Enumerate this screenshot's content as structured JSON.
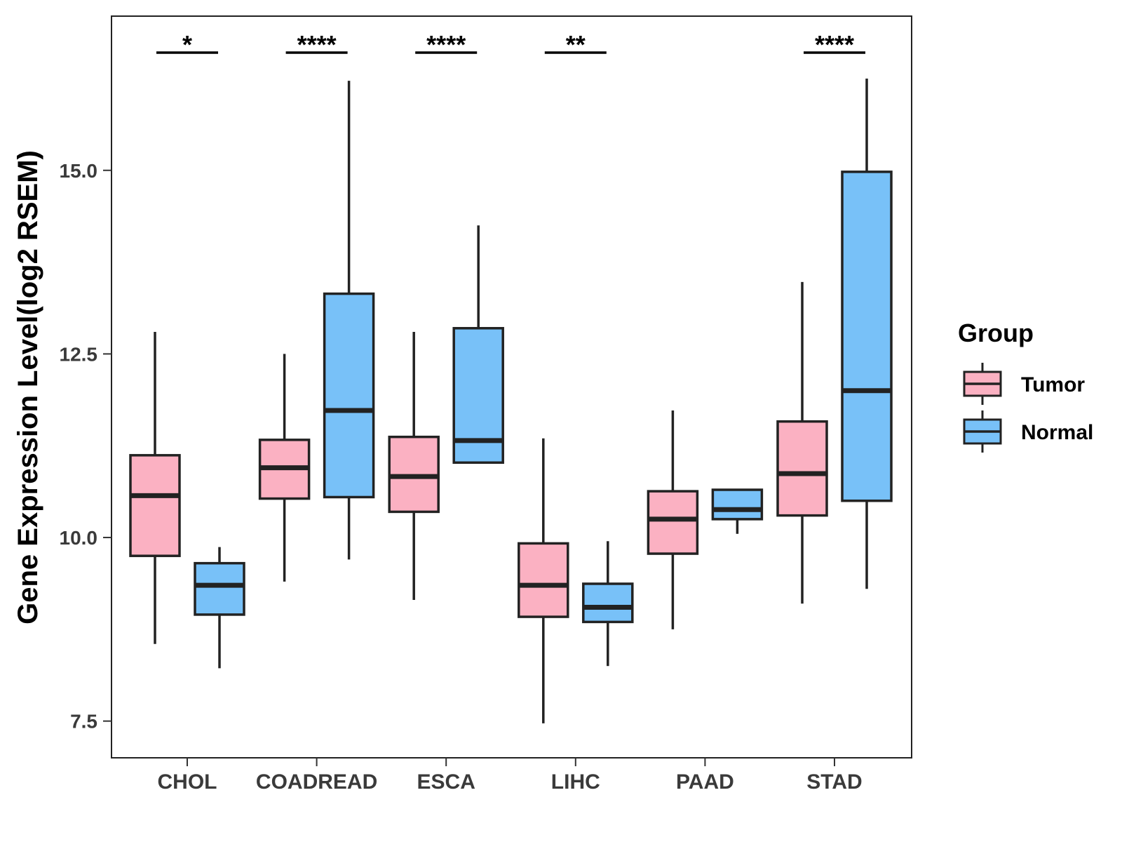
{
  "chart_data": {
    "type": "boxplot",
    "title": "",
    "xlabel": "",
    "ylabel": "Gene Expression Level(log2 RSEM)",
    "ylim": [
      7.0,
      17.1
    ],
    "yticks": [
      7.5,
      10.0,
      12.5,
      15.0
    ],
    "ytick_labels": [
      "7.5",
      "10.0",
      "12.5",
      "15.0"
    ],
    "grid": false,
    "categories": [
      "CHOL",
      "COADREAD",
      "ESCA",
      "LIHC",
      "PAAD",
      "STAD"
    ],
    "legend": {
      "title": "Group",
      "position": "right",
      "entries": [
        {
          "name": "Tumor",
          "color": "#FBB1C2"
        },
        {
          "name": "Normal",
          "color": "#78C1F8"
        }
      ]
    },
    "series": [
      {
        "name": "Tumor",
        "color": "#FBB1C2",
        "boxes": [
          {
            "min": 8.55,
            "q1": 9.75,
            "median": 10.57,
            "q3": 11.12,
            "max": 12.8
          },
          {
            "min": 9.4,
            "q1": 10.53,
            "median": 10.95,
            "q3": 11.33,
            "max": 12.5
          },
          {
            "min": 9.15,
            "q1": 10.35,
            "median": 10.83,
            "q3": 11.37,
            "max": 12.8
          },
          {
            "min": 7.47,
            "q1": 8.92,
            "median": 9.35,
            "q3": 9.92,
            "max": 11.35
          },
          {
            "min": 8.75,
            "q1": 9.78,
            "median": 10.25,
            "q3": 10.63,
            "max": 11.73
          },
          {
            "min": 9.1,
            "q1": 10.3,
            "median": 10.87,
            "q3": 11.58,
            "max": 13.48
          }
        ]
      },
      {
        "name": "Normal",
        "color": "#78C1F8",
        "boxes": [
          {
            "min": 8.22,
            "q1": 8.95,
            "median": 9.35,
            "q3": 9.65,
            "max": 9.87
          },
          {
            "min": 9.7,
            "q1": 10.55,
            "median": 11.73,
            "q3": 13.32,
            "max": 16.22
          },
          {
            "min": 11.02,
            "q1": 11.02,
            "median": 11.32,
            "q3": 12.85,
            "max": 14.25
          },
          {
            "min": 8.25,
            "q1": 8.85,
            "median": 9.05,
            "q3": 9.37,
            "max": 9.95
          },
          {
            "min": 10.05,
            "q1": 10.25,
            "median": 10.38,
            "q3": 10.65,
            "max": 10.65
          },
          {
            "min": 9.3,
            "q1": 10.5,
            "median": 12.0,
            "q3": 14.98,
            "max": 16.25
          }
        ]
      }
    ],
    "significance": [
      "*",
      "****",
      "****",
      "**",
      "",
      "****"
    ]
  }
}
